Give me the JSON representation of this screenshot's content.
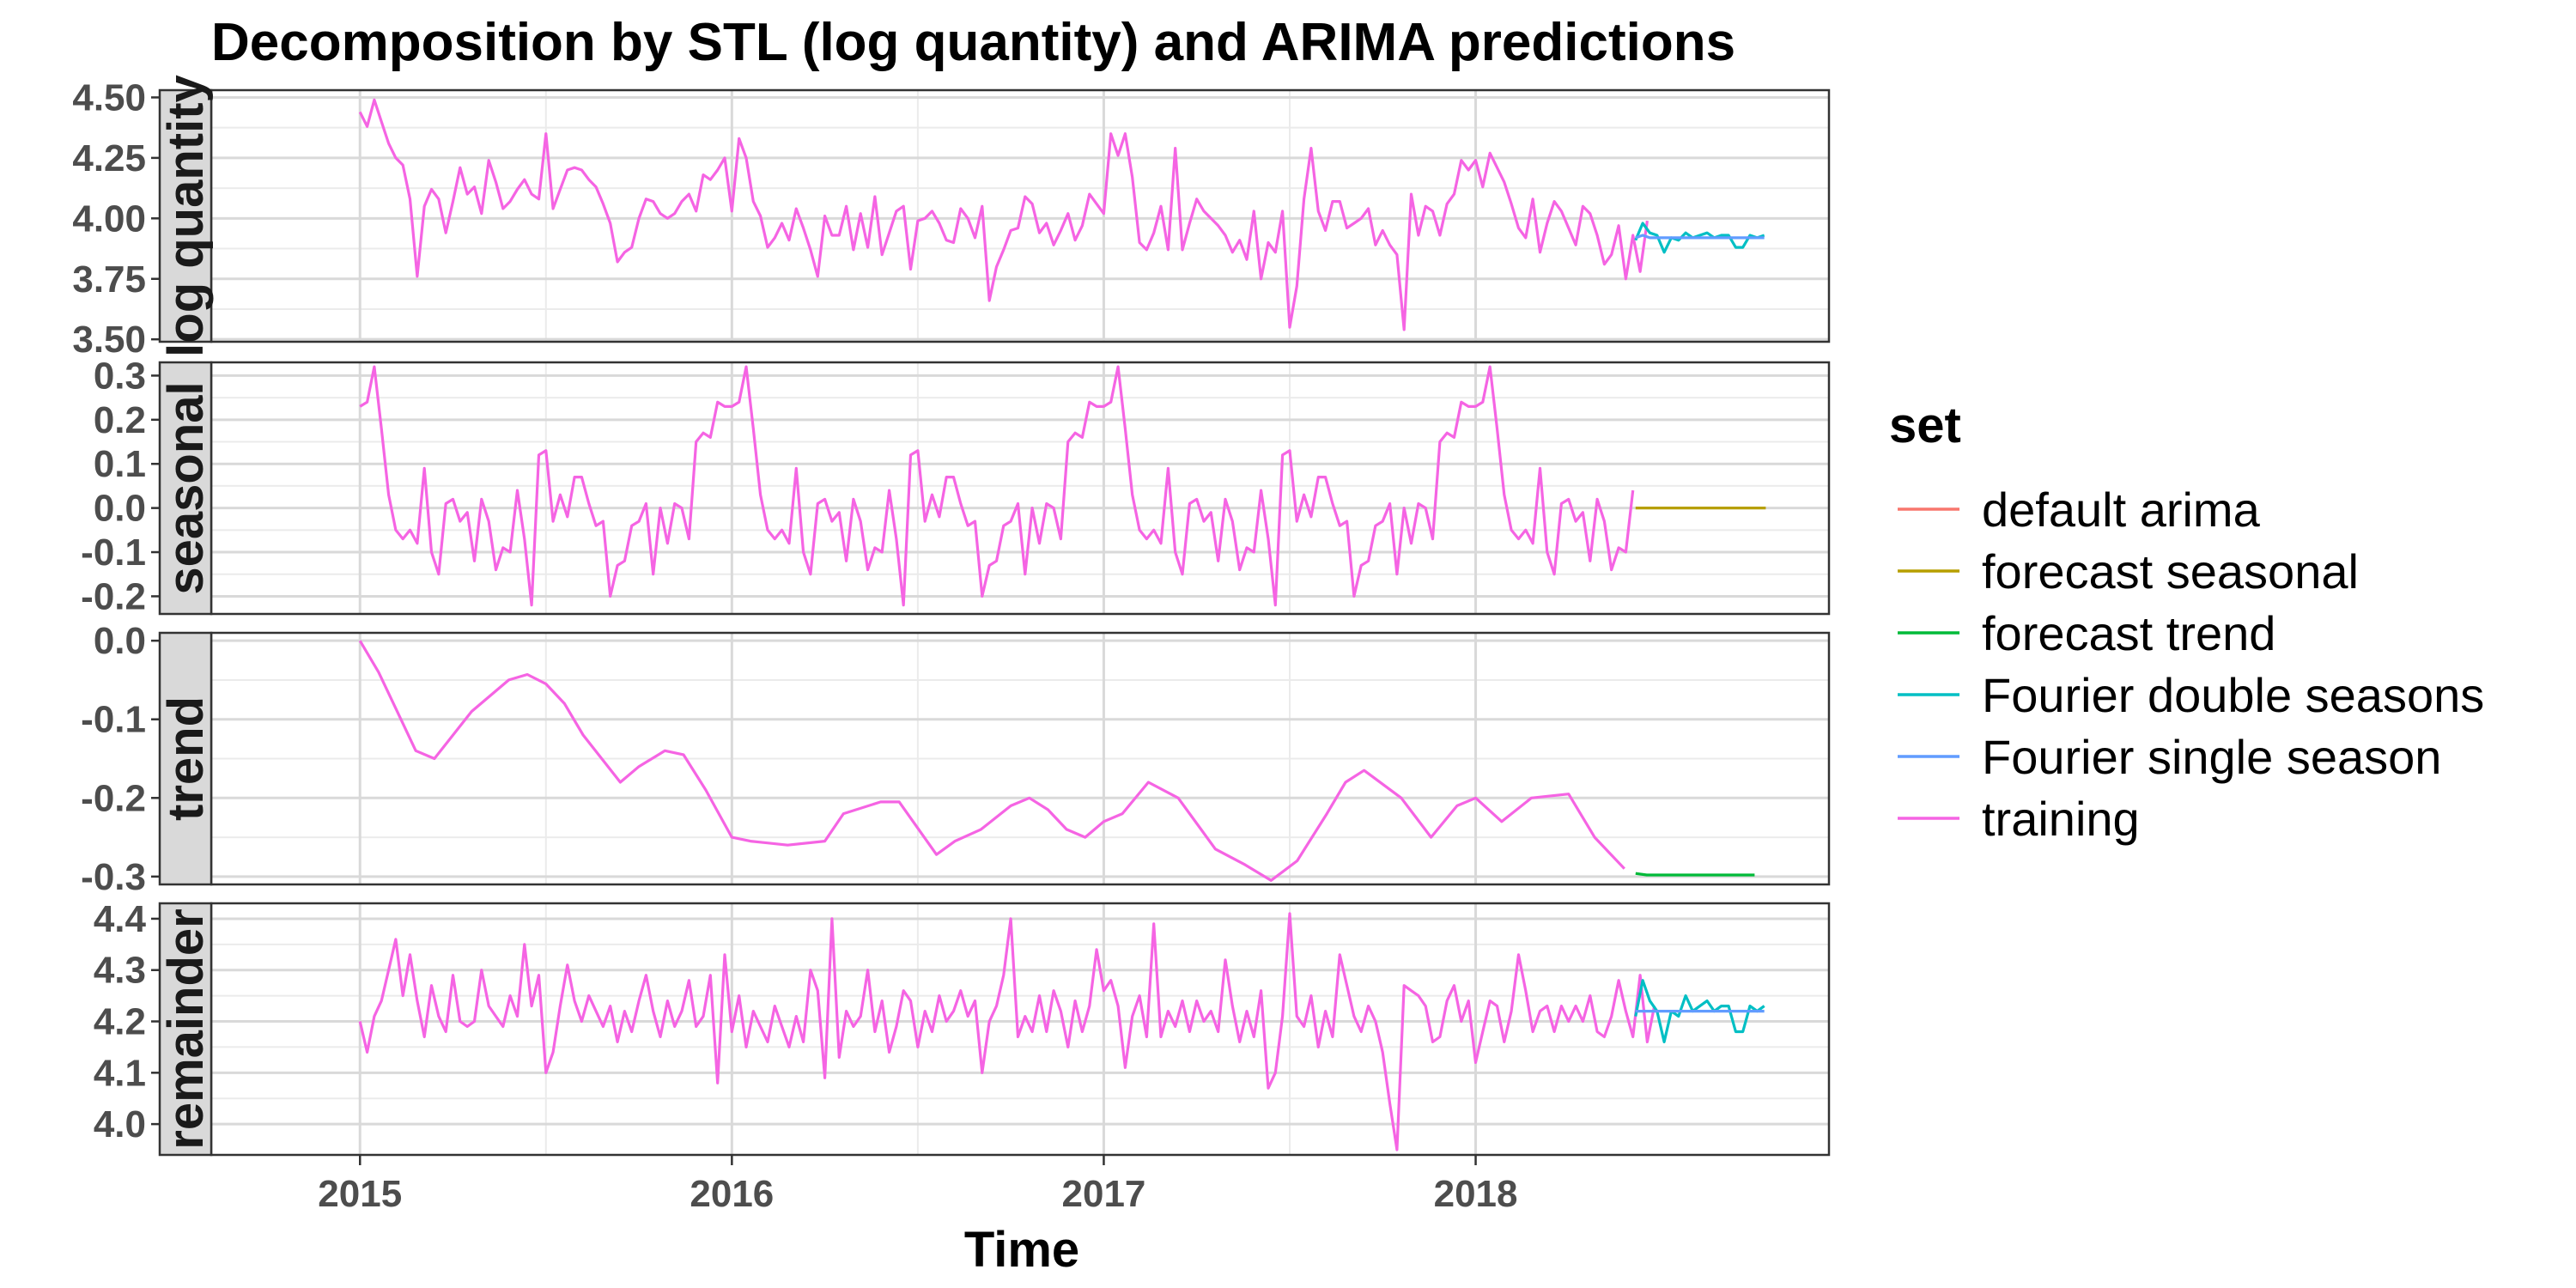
{
  "chart_data": {
    "type": "line",
    "title": "Decomposition by STL (log quantity) and ARIMA predictions",
    "xlabel": "Time",
    "x_ticks": [
      "2015",
      "2016",
      "2017",
      "2018"
    ],
    "xlim": [
      2014.6,
      2018.95
    ],
    "grid": true,
    "legend": {
      "title": "set",
      "position": "right",
      "entries": [
        {
          "label": "default arima",
          "color": "#F8766D"
        },
        {
          "label": "forecast seasonal",
          "color": "#B79F00"
        },
        {
          "label": "forecast trend",
          "color": "#00BA38"
        },
        {
          "label": "Fourier double seasons",
          "color": "#00BFC4"
        },
        {
          "label": "Fourier single season",
          "color": "#619CFF"
        },
        {
          "label": "training",
          "color": "#F564E3"
        }
      ]
    },
    "panels": [
      {
        "strip": "log quantity",
        "ylim": [
          3.49,
          4.53
        ],
        "y_ticks": [
          3.5,
          3.75,
          4.0,
          4.25,
          4.5
        ],
        "y_tick_labels": [
          "3.50",
          "3.75",
          "4.00",
          "4.25",
          "4.50"
        ],
        "series": [
          {
            "set": "training",
            "x_start": 2015.0,
            "x_step": 0.01923,
            "values": [
              4.44,
              4.38,
              4.49,
              4.4,
              4.31,
              4.25,
              4.22,
              4.08,
              3.76,
              4.05,
              4.12,
              4.08,
              3.94,
              4.07,
              4.21,
              4.1,
              4.13,
              4.02,
              4.24,
              4.15,
              4.04,
              4.07,
              4.12,
              4.16,
              4.1,
              4.08,
              4.35,
              4.04,
              4.12,
              4.2,
              4.21,
              4.2,
              4.16,
              4.13,
              4.06,
              3.98,
              3.82,
              3.86,
              3.88,
              4.0,
              4.08,
              4.07,
              4.02,
              4.0,
              4.02,
              4.07,
              4.1,
              4.03,
              4.18,
              4.16,
              4.2,
              4.25,
              4.03,
              4.33,
              4.25,
              4.07,
              4.01,
              3.88,
              3.92,
              3.98,
              3.91,
              4.04,
              3.96,
              3.87,
              3.76,
              4.01,
              3.93,
              3.93,
              4.05,
              3.87,
              4.02,
              3.88,
              4.09,
              3.85,
              3.94,
              4.03,
              4.05,
              3.79,
              3.99,
              4.0,
              4.03,
              3.98,
              3.91,
              3.9,
              4.04,
              4.0,
              3.92,
              4.05,
              3.66,
              3.8,
              3.87,
              3.95,
              3.96,
              4.09,
              4.06,
              3.94,
              3.98,
              3.89,
              3.95,
              4.02,
              3.91,
              3.97,
              4.1,
              4.06,
              4.02,
              4.35,
              4.26,
              4.35,
              4.17,
              3.9,
              3.87,
              3.94,
              4.05,
              3.87,
              4.29,
              3.87,
              3.98,
              4.08,
              4.03,
              4.0,
              3.97,
              3.93,
              3.86,
              3.91,
              3.83,
              4.03,
              3.75,
              3.9,
              3.86,
              4.03,
              3.55,
              3.72,
              4.08,
              4.29,
              4.03,
              3.95,
              4.07,
              4.07,
              3.96,
              3.98,
              4.0,
              4.04,
              3.89,
              3.95,
              3.89,
              3.85,
              3.54,
              4.1,
              3.93,
              4.05,
              4.03,
              3.93,
              4.06,
              4.1,
              4.24,
              4.2,
              4.24,
              4.13,
              4.27,
              4.21,
              4.15,
              4.06,
              3.96,
              3.92,
              4.08,
              3.86,
              3.98,
              4.07,
              4.03,
              3.96,
              3.89,
              4.05,
              4.02,
              3.93,
              3.81,
              3.85,
              3.97,
              3.75,
              3.93,
              3.78,
              3.99
            ]
          },
          {
            "set": "Fourier double seasons",
            "x_start": 2018.43,
            "x_step": 0.01923,
            "values": [
              3.91,
              3.98,
              3.94,
              3.93,
              3.86,
              3.92,
              3.91,
              3.94,
              3.92,
              3.93,
              3.94,
              3.92,
              3.93,
              3.93,
              3.88,
              3.88,
              3.93,
              3.92,
              3.93
            ]
          },
          {
            "set": "Fourier single season",
            "x_start": 2018.43,
            "x_step": 0.01923,
            "values": [
              3.92,
              3.93,
              3.92,
              3.92,
              3.92,
              3.92,
              3.92,
              3.92,
              3.92,
              3.92,
              3.92,
              3.92,
              3.92,
              3.92,
              3.92,
              3.92,
              3.92,
              3.92,
              3.92
            ]
          }
        ]
      },
      {
        "strip": "seasonal",
        "ylim": [
          -0.24,
          0.33
        ],
        "y_ticks": [
          -0.2,
          -0.1,
          0.0,
          0.1,
          0.2,
          0.3
        ],
        "y_tick_labels": [
          "-0.2",
          "-0.1",
          "0.0",
          "0.1",
          "0.2",
          "0.3"
        ],
        "series": [
          {
            "set": "training",
            "x_start": 2015.0,
            "x_step": 0.01923,
            "period": 52,
            "repeat_until": 2018.43,
            "values": [
              0.23,
              0.24,
              0.32,
              0.18,
              0.03,
              -0.05,
              -0.07,
              -0.05,
              -0.08,
              0.09,
              -0.1,
              -0.15,
              0.01,
              0.02,
              -0.03,
              -0.01,
              -0.12,
              0.02,
              -0.03,
              -0.14,
              -0.09,
              -0.1,
              0.04,
              -0.07,
              -0.22,
              0.12,
              0.13,
              -0.03,
              0.03,
              -0.02,
              0.07,
              0.07,
              0.01,
              -0.04,
              -0.03,
              -0.2,
              -0.13,
              -0.12,
              -0.04,
              -0.03,
              0.01,
              -0.15,
              0.0,
              -0.08,
              0.01,
              0.0,
              -0.07,
              0.15,
              0.17,
              0.16,
              0.24,
              0.23
            ]
          },
          {
            "set": "forecast seasonal",
            "x_start": 2018.43,
            "x_step": 0.0175,
            "values": [
              0.0,
              0.0,
              0.0,
              0.0,
              0.0,
              0.0,
              0.0,
              0.0,
              0.0,
              0.0,
              0.0,
              0.0,
              0.0,
              0.0,
              0.0,
              0.0,
              0.0,
              0.0,
              0.0,
              0.0,
              0.0
            ]
          }
        ]
      },
      {
        "strip": "trend",
        "ylim": [
          -0.31,
          0.01
        ],
        "y_ticks": [
          -0.3,
          -0.2,
          -0.1,
          0.0
        ],
        "y_tick_labels": [
          "-0.3",
          "-0.2",
          "-0.1",
          "0.0"
        ],
        "series": [
          {
            "set": "training",
            "x": [
              2015.0,
              2015.05,
              2015.1,
              2015.15,
              2015.2,
              2015.3,
              2015.4,
              2015.45,
              2015.5,
              2015.55,
              2015.6,
              2015.7,
              2015.75,
              2015.82,
              2015.87,
              2015.93,
              2016.0,
              2016.05,
              2016.15,
              2016.25,
              2016.3,
              2016.4,
              2016.45,
              2016.55,
              2016.6,
              2016.67,
              2016.75,
              2016.8,
              2016.85,
              2016.9,
              2016.95,
              2017.0,
              2017.05,
              2017.12,
              2017.2,
              2017.3,
              2017.38,
              2017.45,
              2017.52,
              2017.6,
              2017.65,
              2017.7,
              2017.8,
              2017.88,
              2017.95,
              2018.0,
              2018.07,
              2018.15,
              2018.25,
              2018.32,
              2018.4
            ],
            "values": [
              0.0,
              -0.04,
              -0.09,
              -0.14,
              -0.15,
              -0.09,
              -0.05,
              -0.043,
              -0.055,
              -0.08,
              -0.12,
              -0.18,
              -0.16,
              -0.14,
              -0.145,
              -0.19,
              -0.25,
              -0.255,
              -0.26,
              -0.255,
              -0.22,
              -0.205,
              -0.205,
              -0.272,
              -0.255,
              -0.24,
              -0.21,
              -0.2,
              -0.215,
              -0.24,
              -0.25,
              -0.23,
              -0.22,
              -0.18,
              -0.2,
              -0.265,
              -0.285,
              -0.305,
              -0.28,
              -0.22,
              -0.18,
              -0.165,
              -0.2,
              -0.25,
              -0.21,
              -0.2,
              -0.23,
              -0.2,
              -0.195,
              -0.25,
              -0.29
            ]
          },
          {
            "set": "forecast trend",
            "x": [
              2018.43,
              2018.46,
              2018.5,
              2018.75
            ],
            "values": [
              -0.296,
              -0.298,
              -0.298,
              -0.298
            ]
          }
        ]
      },
      {
        "strip": "remainder",
        "ylim": [
          3.94,
          4.43
        ],
        "y_ticks": [
          4.0,
          4.1,
          4.2,
          4.3,
          4.4
        ],
        "y_tick_labels": [
          "4.0",
          "4.1",
          "4.2",
          "4.3",
          "4.4"
        ],
        "series": [
          {
            "set": "training",
            "x_start": 2015.0,
            "x_step": 0.01923,
            "values": [
              4.2,
              4.14,
              4.21,
              4.24,
              4.3,
              4.36,
              4.25,
              4.33,
              4.24,
              4.17,
              4.27,
              4.21,
              4.18,
              4.29,
              4.2,
              4.19,
              4.2,
              4.3,
              4.23,
              4.21,
              4.19,
              4.25,
              4.21,
              4.35,
              4.23,
              4.29,
              4.1,
              4.14,
              4.23,
              4.31,
              4.24,
              4.2,
              4.25,
              4.22,
              4.19,
              4.23,
              4.16,
              4.22,
              4.18,
              4.24,
              4.29,
              4.22,
              4.17,
              4.24,
              4.19,
              4.22,
              4.28,
              4.19,
              4.21,
              4.29,
              4.08,
              4.33,
              4.18,
              4.25,
              4.15,
              4.22,
              4.19,
              4.16,
              4.23,
              4.19,
              4.15,
              4.21,
              4.16,
              4.3,
              4.26,
              4.09,
              4.4,
              4.13,
              4.22,
              4.19,
              4.21,
              4.3,
              4.18,
              4.24,
              4.14,
              4.19,
              4.26,
              4.24,
              4.15,
              4.22,
              4.18,
              4.25,
              4.2,
              4.22,
              4.26,
              4.21,
              4.24,
              4.1,
              4.2,
              4.23,
              4.29,
              4.4,
              4.17,
              4.21,
              4.18,
              4.25,
              4.18,
              4.26,
              4.22,
              4.15,
              4.24,
              4.18,
              4.23,
              4.34,
              4.26,
              4.28,
              4.23,
              4.11,
              4.21,
              4.25,
              4.17,
              4.39,
              4.17,
              4.22,
              4.19,
              4.24,
              4.18,
              4.24,
              4.2,
              4.22,
              4.18,
              4.32,
              4.23,
              4.16,
              4.22,
              4.17,
              4.26,
              4.07,
              4.1,
              4.21,
              4.41,
              4.21,
              4.19,
              4.25,
              4.15,
              4.22,
              4.17,
              4.33,
              4.27,
              4.21,
              4.18,
              4.23,
              4.2,
              4.14,
              4.04,
              3.95,
              4.27,
              4.26,
              4.25,
              4.23,
              4.16,
              4.17,
              4.24,
              4.27,
              4.2,
              4.24,
              4.12,
              4.18,
              4.24,
              4.23,
              4.16,
              4.22,
              4.33,
              4.26,
              4.18,
              4.22,
              4.23,
              4.18,
              4.23,
              4.2,
              4.23,
              4.2,
              4.25,
              4.18,
              4.17,
              4.21,
              4.28,
              4.22,
              4.17,
              4.29,
              4.16,
              4.23
            ]
          },
          {
            "set": "Fourier double seasons",
            "x_start": 2018.43,
            "x_step": 0.01923,
            "values": [
              4.21,
              4.28,
              4.24,
              4.22,
              4.16,
              4.22,
              4.21,
              4.25,
              4.22,
              4.23,
              4.24,
              4.22,
              4.23,
              4.23,
              4.18,
              4.18,
              4.23,
              4.22,
              4.23
            ]
          },
          {
            "set": "Fourier single season",
            "x_start": 2018.43,
            "x_step": 0.01923,
            "values": [
              4.22,
              4.22,
              4.22,
              4.22,
              4.22,
              4.22,
              4.22,
              4.22,
              4.22,
              4.22,
              4.22,
              4.22,
              4.22,
              4.22,
              4.22,
              4.22,
              4.22,
              4.22,
              4.22
            ]
          }
        ]
      }
    ]
  }
}
